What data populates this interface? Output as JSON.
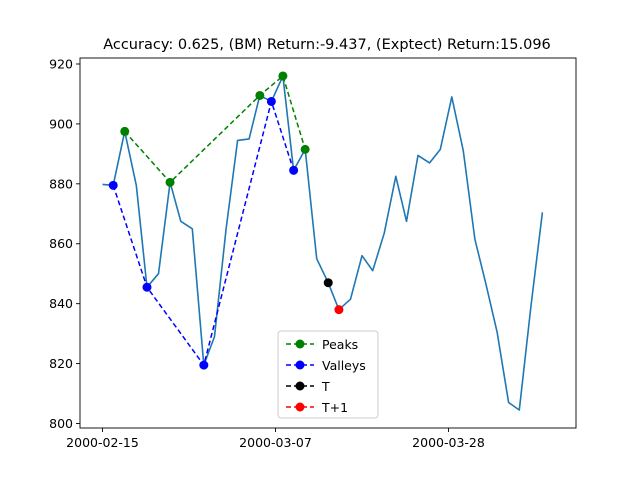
{
  "chart_data": {
    "type": "line",
    "title": "Accuracy: 0.625, (BM) Return:-9.437, (Exptect) Return:15.096",
    "xlabel": "",
    "ylabel": "",
    "x_start": "2000-02-15",
    "ylim": [
      798.5,
      922
    ],
    "yticks": [
      800,
      820,
      840,
      860,
      880,
      900,
      920
    ],
    "xticks": [
      {
        "label": "2000-02-15",
        "day": 0
      },
      {
        "label": "2000-03-07",
        "day": 21
      },
      {
        "label": "2000-03-28",
        "day": 42
      }
    ],
    "price": {
      "name": "",
      "color": "#1f77b4",
      "points": [
        [
          0,
          879.8
        ],
        [
          1.3,
          879.5
        ],
        [
          2.7,
          897.5
        ],
        [
          4.1,
          879.5
        ],
        [
          5.4,
          845.5
        ],
        [
          6.8,
          850.0
        ],
        [
          8.2,
          880.5
        ],
        [
          9.5,
          867.5
        ],
        [
          10.9,
          865.0
        ],
        [
          12.3,
          819.5
        ],
        [
          13.6,
          829.0
        ],
        [
          15.0,
          865.0
        ],
        [
          16.4,
          894.5
        ],
        [
          17.8,
          895.0
        ],
        [
          19.1,
          909.5
        ],
        [
          20.5,
          907.5
        ],
        [
          21.9,
          916.0
        ],
        [
          23.2,
          884.5
        ],
        [
          24.6,
          891.5
        ],
        [
          26.0,
          855.0
        ],
        [
          27.4,
          847.0
        ],
        [
          28.7,
          838.0
        ],
        [
          30.1,
          841.5
        ],
        [
          31.5,
          856.0
        ],
        [
          32.8,
          851.0
        ],
        [
          34.2,
          863.5
        ],
        [
          35.6,
          882.5
        ],
        [
          36.9,
          867.5
        ],
        [
          38.3,
          889.5
        ],
        [
          39.7,
          887.0
        ],
        [
          41.0,
          891.5
        ],
        [
          42.4,
          909.0
        ],
        [
          43.8,
          891.0
        ],
        [
          45.2,
          861.5
        ],
        [
          46.5,
          847.0
        ],
        [
          47.9,
          830.5
        ],
        [
          49.3,
          807.0
        ],
        [
          50.6,
          804.5
        ],
        [
          52.0,
          839.0
        ],
        [
          53.4,
          870.5
        ]
      ]
    },
    "peaks": {
      "name": "Peaks",
      "color": "#008000",
      "points": [
        [
          2.7,
          897.5
        ],
        [
          8.2,
          880.5
        ],
        [
          19.1,
          909.5
        ],
        [
          21.9,
          916.0
        ],
        [
          24.6,
          891.5
        ]
      ]
    },
    "valleys": {
      "name": "Valleys",
      "color": "#0000ff",
      "points": [
        [
          1.3,
          879.5
        ],
        [
          5.4,
          845.5
        ],
        [
          12.3,
          819.5
        ],
        [
          20.5,
          907.5
        ],
        [
          23.2,
          884.5
        ]
      ]
    },
    "t_point": {
      "name": "T",
      "color": "#000000",
      "x": 27.4,
      "y": 847.0
    },
    "t1_point": {
      "name": "T+1",
      "color": "#ff0000",
      "x": 28.7,
      "y": 838.0
    },
    "legend_position": "lower center"
  }
}
